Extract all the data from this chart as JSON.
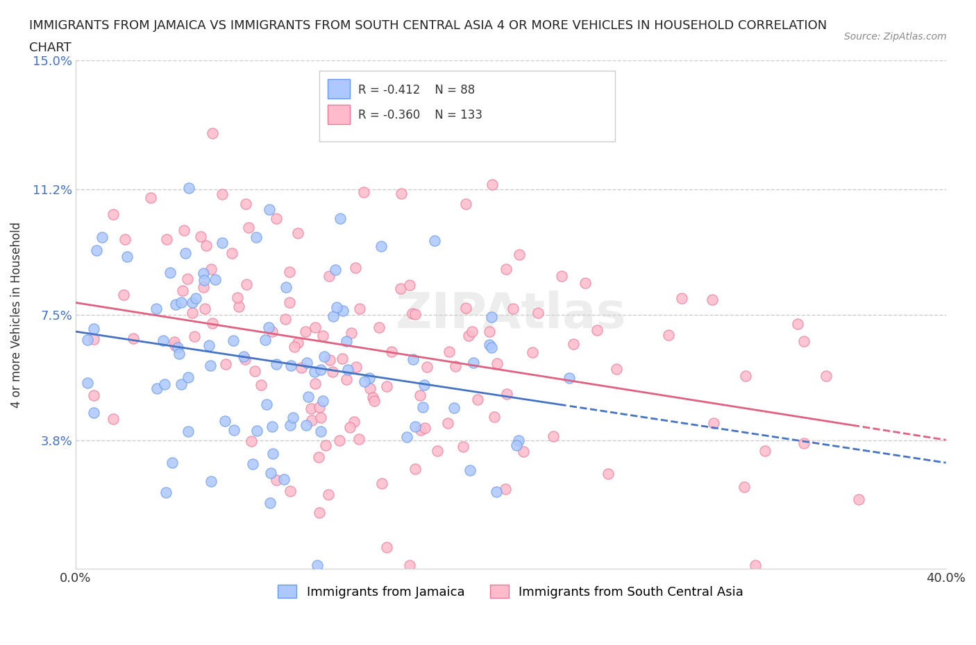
{
  "title_line1": "IMMIGRANTS FROM JAMAICA VS IMMIGRANTS FROM SOUTH CENTRAL ASIA 4 OR MORE VEHICLES IN HOUSEHOLD CORRELATION",
  "title_line2": "CHART",
  "source": "Source: ZipAtlas.com",
  "xlabel": "",
  "ylabel": "4 or more Vehicles in Household",
  "xlim": [
    0.0,
    0.4
  ],
  "ylim": [
    0.0,
    0.15
  ],
  "yticks": [
    0.0,
    0.038,
    0.075,
    0.112,
    0.15
  ],
  "ytick_labels": [
    "",
    "3.8%",
    "7.5%",
    "11.2%",
    "15.0%"
  ],
  "xticks": [
    0.0,
    0.1,
    0.2,
    0.3,
    0.4
  ],
  "xtick_labels": [
    "0.0%",
    "",
    "",
    "",
    "40.0%"
  ],
  "series": [
    {
      "name": "Immigrants from Jamaica",
      "R": -0.412,
      "N": 88,
      "color": "#8ab4f8",
      "face_color": "#adc8ff",
      "edge_color": "#6699ee"
    },
    {
      "name": "Immigrants from South Central Asia",
      "R": -0.36,
      "N": 133,
      "color": "#f8a8b8",
      "face_color": "#ffbbcc",
      "edge_color": "#ee7799"
    }
  ],
  "watermark": "ZIPAtlas",
  "background_color": "#ffffff",
  "grid_color": "#cccccc"
}
